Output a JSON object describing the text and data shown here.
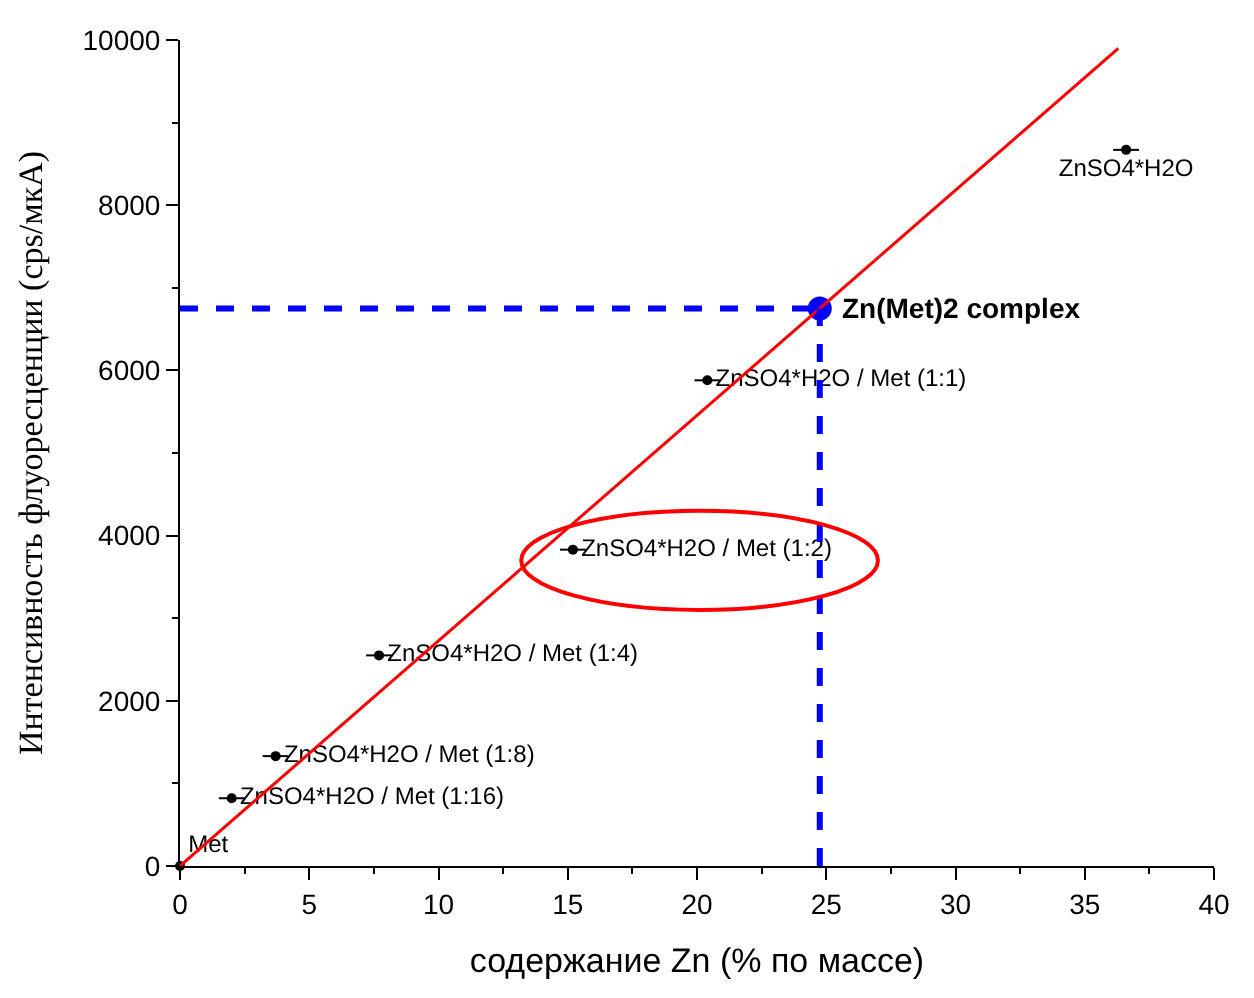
{
  "chart_data": {
    "type": "scatter",
    "xlabel": "содержание Zn (% по массе)",
    "ylabel": "Интенсивность флуоресценции (cps/мкА)",
    "xlim": [
      0,
      40
    ],
    "xticks": [
      0,
      5,
      10,
      15,
      20,
      25,
      30,
      35,
      40
    ],
    "ylim": [
      0,
      10000
    ],
    "yticks": [
      0,
      2000,
      4000,
      6000,
      8000,
      10000
    ],
    "marker": "circle",
    "series": [
      {
        "color": "#000000",
        "x": [
          0,
          2.0,
          3.7,
          7.7,
          15.2,
          20.4,
          36.6
        ],
        "values": [
          0,
          820,
          1330,
          2550,
          3830,
          5880,
          8670
        ],
        "xerrors": [
          null,
          0.5,
          0.5,
          0.5,
          0.5,
          0.5,
          0.5
        ],
        "value_labels": [
          "Met",
          "ZnSO4*H2O / Met (1:16)",
          "ZnSO4*H2O / Met (1:8)",
          "ZnSO4*H2O / Met (1:4)",
          "ZnSO4*H2O / Met (1:2)",
          "ZnSO4*H2O / Met (1:1)",
          "ZnSO4*H2O"
        ]
      },
      {
        "color": "#0000ff",
        "x": [
          24.75
        ],
        "values": [
          6750
        ]
      },
      {
        "type": "line",
        "color": "#ff0000",
        "x": [
          0,
          36.3
        ],
        "values": [
          0,
          9900
        ],
        "line_style": "solid",
        "marker": "none"
      }
    ],
    "annotations": [
      {
        "text": "Zn(Met)2 complex",
        "x": 24.75,
        "y": 6750
      }
    ],
    "ref_lines": [
      {
        "axis": "y",
        "value": 6750,
        "label": null,
        "color": "#0000ff",
        "line_style": "dashed"
      },
      {
        "axis": "x",
        "value": 24.75,
        "label": null,
        "color": "#0000ff",
        "line_style": "dashed"
      }
    ]
  }
}
